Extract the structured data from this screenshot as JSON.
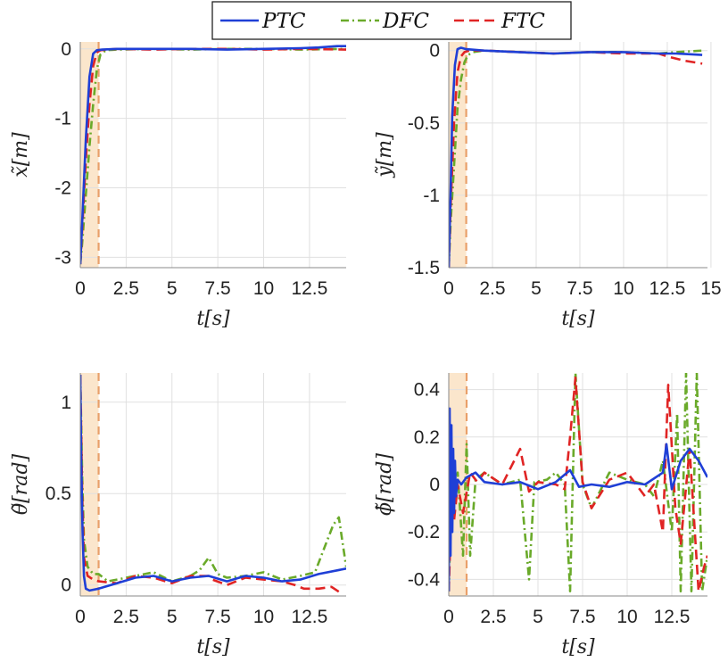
{
  "legend": {
    "entries": [
      {
        "name": "PTC",
        "color": "#1f3fd6",
        "dash": "solid"
      },
      {
        "name": "DFC",
        "color": "#6aaa2a",
        "dash": "dashdot"
      },
      {
        "name": "FTC",
        "color": "#e02424",
        "dash": "dashed"
      }
    ]
  },
  "colors": {
    "transient_shade": "#fbe6cc",
    "transient_line": "#e9a06a",
    "grid": "#e0e0e0"
  },
  "chart_data": [
    {
      "type": "line",
      "ylabel": "x̃[m]",
      "xlabel": "t[s]",
      "xlim": [
        0,
        14.5
      ],
      "ylim": [
        -3.15,
        0.1
      ],
      "xticks": [
        0,
        2.5,
        5,
        7.5,
        10,
        12.5
      ],
      "xtick_labels": [
        "0",
        "2.5",
        "5",
        "7.5",
        "10",
        "12.5"
      ],
      "yticks": [
        0,
        -1,
        -2,
        -3
      ],
      "ytick_labels": [
        "0",
        "-1",
        "-2",
        "-3"
      ],
      "shade_end": 1.0,
      "series": [
        {
          "name": "PTC",
          "x": [
            0,
            0.1,
            0.3,
            0.5,
            0.7,
            0.9,
            1.2,
            2,
            4,
            6,
            8,
            10,
            12,
            13,
            14,
            14.5
          ],
          "y": [
            -3.1,
            -2.5,
            -1.3,
            -0.4,
            -0.07,
            -0.02,
            -0.01,
            0,
            0,
            0,
            -0.01,
            0,
            0.01,
            0.02,
            0.04,
            0.04
          ]
        },
        {
          "name": "DFC",
          "x": [
            0,
            0.1,
            0.3,
            0.5,
            0.7,
            0.9,
            1.1,
            1.4,
            2,
            4,
            6,
            8,
            10,
            12,
            14.5
          ],
          "y": [
            -3.1,
            -2.8,
            -2.1,
            -1.4,
            -0.8,
            -0.3,
            -0.08,
            -0.02,
            -0.01,
            0,
            -0.01,
            0,
            0,
            -0.01,
            0.0
          ]
        },
        {
          "name": "FTC",
          "x": [
            0,
            0.1,
            0.3,
            0.5,
            0.7,
            0.9,
            1.1,
            1.4,
            2,
            4,
            6,
            8,
            10,
            12,
            14.5
          ],
          "y": [
            -3.1,
            -2.6,
            -1.6,
            -0.8,
            -0.25,
            -0.05,
            -0.02,
            -0.01,
            0,
            -0.01,
            0,
            0,
            -0.01,
            0,
            -0.01
          ]
        }
      ]
    },
    {
      "type": "line",
      "ylabel": "ỹ[m]",
      "xlabel": "t[s]",
      "xlim": [
        0,
        14.8
      ],
      "ylim": [
        -1.5,
        0.06
      ],
      "xticks": [
        0,
        2.5,
        5,
        7.5,
        10,
        12.5,
        15
      ],
      "xtick_labels": [
        "0",
        "2.5",
        "5",
        "7.5",
        "10",
        "12.5",
        "15"
      ],
      "yticks": [
        0,
        -0.5,
        -1,
        -1.5
      ],
      "ytick_labels": [
        "0",
        "-0.5",
        "-1",
        "-1.5"
      ],
      "shade_end": 1.0,
      "series": [
        {
          "name": "PTC",
          "x": [
            0,
            0.1,
            0.2,
            0.35,
            0.5,
            0.7,
            1,
            2,
            4,
            6,
            8,
            10,
            12,
            13,
            14.5
          ],
          "y": [
            -1.5,
            -1.0,
            -0.45,
            -0.1,
            0.01,
            0.02,
            0.01,
            0,
            -0.01,
            -0.02,
            -0.01,
            -0.01,
            -0.02,
            -0.02,
            -0.03
          ]
        },
        {
          "name": "DFC",
          "x": [
            0,
            0.1,
            0.3,
            0.5,
            0.7,
            0.9,
            1.1,
            1.4,
            2,
            4,
            6,
            8,
            10,
            12,
            13,
            14.5
          ],
          "y": [
            -1.5,
            -1.2,
            -0.8,
            -0.4,
            -0.2,
            -0.08,
            -0.03,
            -0.01,
            0,
            -0.01,
            -0.02,
            -0.01,
            -0.01,
            -0.02,
            -0.01,
            0.0
          ]
        },
        {
          "name": "FTC",
          "x": [
            0,
            0.1,
            0.3,
            0.5,
            0.7,
            0.9,
            1.2,
            2,
            4,
            6,
            8,
            10,
            12,
            12.5,
            13.5,
            14.5
          ],
          "y": [
            -1.5,
            -1.1,
            -0.5,
            -0.15,
            -0.04,
            -0.01,
            0,
            0,
            -0.01,
            -0.02,
            -0.01,
            -0.02,
            -0.02,
            -0.04,
            -0.07,
            -0.09
          ]
        }
      ]
    },
    {
      "type": "line",
      "ylabel": "θ̃[rad]",
      "xlabel": "t[s]",
      "xlim": [
        0,
        14.5
      ],
      "ylim": [
        -0.06,
        1.16
      ],
      "xticks": [
        0,
        2.5,
        5,
        7.5,
        10,
        12.5
      ],
      "xtick_labels": [
        "0",
        "2.5",
        "5",
        "7.5",
        "10",
        "12.5"
      ],
      "yticks": [
        1,
        0.5,
        0
      ],
      "ytick_labels": [
        "1",
        "0.5",
        "0"
      ],
      "shade_end": 1.0,
      "series": [
        {
          "name": "PTC",
          "x": [
            0,
            0.05,
            0.12,
            0.2,
            0.3,
            0.5,
            1,
            2,
            3,
            4,
            5,
            6,
            7,
            8,
            9,
            10,
            11,
            12,
            13,
            14.5
          ],
          "y": [
            1.15,
            0.7,
            0.3,
            0.05,
            -0.02,
            -0.03,
            -0.02,
            0.01,
            0.04,
            0.05,
            0.02,
            0.04,
            0.05,
            0.02,
            0.05,
            0.04,
            0.02,
            0.03,
            0.06,
            0.09
          ]
        },
        {
          "name": "DFC",
          "x": [
            0,
            0.1,
            0.2,
            0.4,
            0.7,
            1,
            1.5,
            2,
            3,
            4,
            5,
            6,
            6.5,
            7,
            7.5,
            8,
            9,
            10,
            11,
            12,
            12.8,
            13.3,
            13.8,
            14.1,
            14.5
          ],
          "y": [
            1.15,
            0.6,
            0.25,
            0.1,
            0.06,
            0.06,
            0.02,
            0.03,
            0.05,
            0.07,
            0.02,
            0.05,
            0.08,
            0.15,
            0.06,
            0.04,
            0.05,
            0.07,
            0.03,
            0.05,
            0.07,
            0.2,
            0.33,
            0.37,
            0.1
          ]
        },
        {
          "name": "FTC",
          "x": [
            0,
            0.1,
            0.2,
            0.4,
            0.7,
            1,
            2,
            3,
            4,
            5,
            6,
            7,
            7.2,
            8,
            9,
            10,
            11,
            11.7,
            12.2,
            13,
            13.7,
            14.3
          ],
          "y": [
            1.15,
            0.5,
            0.15,
            0.05,
            0.03,
            0.02,
            0.01,
            0.05,
            0.04,
            0.01,
            0.05,
            0.05,
            0.03,
            0.0,
            0.04,
            0.03,
            0.02,
            0.0,
            -0.02,
            -0.02,
            -0.01,
            -0.05
          ]
        }
      ]
    },
    {
      "type": "line",
      "ylabel": "ϕ̃[rad]",
      "xlabel": "t[s]",
      "xlim": [
        0,
        14.5
      ],
      "ylim": [
        -0.47,
        0.47
      ],
      "xticks": [
        0,
        2.5,
        5,
        7.5,
        10,
        12.5
      ],
      "xtick_labels": [
        "0",
        "2.5",
        "5",
        "7.5",
        "10",
        "12.5"
      ],
      "yticks": [
        0.4,
        0.2,
        0,
        -0.2,
        -0.4
      ],
      "ytick_labels": [
        "0.4",
        "0.2",
        "0",
        "-0.2",
        "-0.4"
      ],
      "shade_end": 1.0,
      "series": [
        {
          "name": "PTC",
          "x": [
            0,
            0.05,
            0.1,
            0.15,
            0.2,
            0.25,
            0.3,
            0.35,
            0.4,
            0.5,
            0.7,
            1,
            1.5,
            2,
            3,
            4,
            5,
            6,
            6.8,
            7.3,
            8,
            9,
            10,
            11,
            12,
            12.2,
            12.5,
            13,
            13.5,
            14,
            14.5
          ],
          "y": [
            -0.45,
            0.32,
            -0.3,
            0.25,
            -0.2,
            0.15,
            -0.12,
            0.1,
            -0.05,
            0.02,
            0.0,
            0.03,
            0.05,
            0.01,
            0.0,
            0.01,
            -0.02,
            0.01,
            0.06,
            -0.01,
            0.0,
            -0.01,
            0.01,
            0.0,
            0.05,
            0.17,
            -0.02,
            0.1,
            0.15,
            0.1,
            0.03
          ]
        },
        {
          "name": "DFC",
          "x": [
            0,
            0.1,
            0.2,
            0.3,
            0.5,
            0.8,
            1,
            1.2,
            1.5,
            2,
            3,
            4,
            4.5,
            4.8,
            5.5,
            6,
            6.5,
            6.8,
            7.1,
            7.5,
            8,
            9,
            10,
            11,
            11.5,
            12,
            12.5,
            12.8,
            13,
            13.3,
            13.6,
            13.9,
            14.2,
            14.5
          ],
          "y": [
            -0.45,
            -0.15,
            0.1,
            -0.05,
            0.05,
            -0.3,
            0.17,
            -0.3,
            0.02,
            0.05,
            0.0,
            0.02,
            -0.4,
            0.01,
            0.02,
            0.05,
            0.0,
            -0.45,
            0.47,
            0.0,
            -0.1,
            0.05,
            0.02,
            0.0,
            -0.05,
            0.1,
            -0.2,
            0.3,
            -0.45,
            0.47,
            -0.45,
            0.47,
            -0.45,
            -0.3
          ]
        },
        {
          "name": "FTC",
          "x": [
            0,
            0.1,
            0.2,
            0.3,
            0.5,
            0.8,
            1.2,
            1.6,
            2,
            3,
            4,
            4.5,
            5,
            6,
            6.5,
            6.8,
            7.1,
            7.5,
            8,
            9,
            10,
            11,
            11.5,
            12,
            12.3,
            12.7,
            13,
            13.5,
            14,
            14.3,
            14.5
          ],
          "y": [
            -0.45,
            -0.2,
            0.05,
            -0.15,
            0.0,
            -0.12,
            0.05,
            0.01,
            0.05,
            0.0,
            0.15,
            -0.03,
            0.01,
            0.0,
            -0.02,
            0.2,
            0.45,
            0.01,
            -0.1,
            0.02,
            0.05,
            -0.05,
            0.0,
            -0.2,
            0.42,
            -0.1,
            -0.25,
            0.15,
            -0.45,
            -0.35,
            -0.3
          ]
        }
      ]
    }
  ]
}
